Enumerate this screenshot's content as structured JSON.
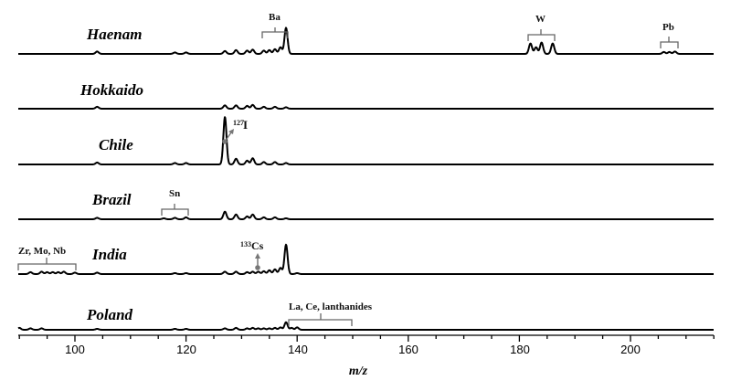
{
  "chart_data": {
    "type": "line",
    "title": "",
    "xlabel": "m/z",
    "ylabel": "",
    "xlim": [
      90,
      215
    ],
    "x_ticks": [
      100,
      120,
      140,
      160,
      180,
      200
    ],
    "x_tick_labels": [
      "100",
      "120",
      "140",
      "160",
      "180",
      "200"
    ],
    "minor_tick_step": 5,
    "grid": false,
    "legend": "none (samples labeled inline)",
    "layout": "stacked offset traces",
    "series": [
      {
        "name": "Haenam",
        "peaks": [
          {
            "mz": 104,
            "rel": 0.05
          },
          {
            "mz": 118,
            "rel": 0.03
          },
          {
            "mz": 120,
            "rel": 0.03
          },
          {
            "mz": 127,
            "rel": 0.06
          },
          {
            "mz": 129,
            "rel": 0.08
          },
          {
            "mz": 131,
            "rel": 0.07
          },
          {
            "mz": 132,
            "rel": 0.09
          },
          {
            "mz": 134,
            "rel": 0.07
          },
          {
            "mz": 135,
            "rel": 0.08
          },
          {
            "mz": 136,
            "rel": 0.1
          },
          {
            "mz": 137,
            "rel": 0.14
          },
          {
            "mz": 138,
            "rel": 0.55
          },
          {
            "mz": 182,
            "rel": 0.22
          },
          {
            "mz": 183,
            "rel": 0.14
          },
          {
            "mz": 184,
            "rel": 0.24
          },
          {
            "mz": 186,
            "rel": 0.22
          },
          {
            "mz": 206,
            "rel": 0.04
          },
          {
            "mz": 207,
            "rel": 0.04
          },
          {
            "mz": 208,
            "rel": 0.05
          }
        ]
      },
      {
        "name": "Hokkaido",
        "peaks": [
          {
            "mz": 104,
            "rel": 0.04
          },
          {
            "mz": 127,
            "rel": 0.07
          },
          {
            "mz": 129,
            "rel": 0.07
          },
          {
            "mz": 131,
            "rel": 0.06
          },
          {
            "mz": 132,
            "rel": 0.08
          },
          {
            "mz": 134,
            "rel": 0.04
          },
          {
            "mz": 136,
            "rel": 0.04
          },
          {
            "mz": 138,
            "rel": 0.03
          }
        ]
      },
      {
        "name": "Chile",
        "peaks": [
          {
            "mz": 104,
            "rel": 0.04
          },
          {
            "mz": 118,
            "rel": 0.03
          },
          {
            "mz": 120,
            "rel": 0.03
          },
          {
            "mz": 127,
            "rel": 1.0
          },
          {
            "mz": 129,
            "rel": 0.12
          },
          {
            "mz": 131,
            "rel": 0.08
          },
          {
            "mz": 132,
            "rel": 0.13
          },
          {
            "mz": 134,
            "rel": 0.05
          },
          {
            "mz": 136,
            "rel": 0.05
          },
          {
            "mz": 138,
            "rel": 0.03
          }
        ]
      },
      {
        "name": "Brazil",
        "peaks": [
          {
            "mz": 104,
            "rel": 0.03
          },
          {
            "mz": 116,
            "rel": 0.02
          },
          {
            "mz": 118,
            "rel": 0.03
          },
          {
            "mz": 120,
            "rel": 0.04
          },
          {
            "mz": 127,
            "rel": 0.16
          },
          {
            "mz": 129,
            "rel": 0.1
          },
          {
            "mz": 131,
            "rel": 0.06
          },
          {
            "mz": 132,
            "rel": 0.1
          },
          {
            "mz": 134,
            "rel": 0.04
          },
          {
            "mz": 136,
            "rel": 0.04
          },
          {
            "mz": 138,
            "rel": 0.02
          }
        ]
      },
      {
        "name": "India",
        "peaks": [
          {
            "mz": 92,
            "rel": 0.04
          },
          {
            "mz": 94,
            "rel": 0.05
          },
          {
            "mz": 95,
            "rel": 0.04
          },
          {
            "mz": 96,
            "rel": 0.04
          },
          {
            "mz": 97,
            "rel": 0.04
          },
          {
            "mz": 98,
            "rel": 0.05
          },
          {
            "mz": 100,
            "rel": 0.03
          },
          {
            "mz": 104,
            "rel": 0.03
          },
          {
            "mz": 118,
            "rel": 0.02
          },
          {
            "mz": 120,
            "rel": 0.02
          },
          {
            "mz": 127,
            "rel": 0.05
          },
          {
            "mz": 129,
            "rel": 0.05
          },
          {
            "mz": 131,
            "rel": 0.04
          },
          {
            "mz": 132,
            "rel": 0.05
          },
          {
            "mz": 133,
            "rel": 0.05
          },
          {
            "mz": 134,
            "rel": 0.06
          },
          {
            "mz": 135,
            "rel": 0.08
          },
          {
            "mz": 136,
            "rel": 0.1
          },
          {
            "mz": 137,
            "rel": 0.13
          },
          {
            "mz": 138,
            "rel": 0.62
          },
          {
            "mz": 140,
            "rel": 0.02
          }
        ]
      },
      {
        "name": "Poland",
        "peaks": [
          {
            "mz": 90,
            "rel": 0.04
          },
          {
            "mz": 92,
            "rel": 0.03
          },
          {
            "mz": 94,
            "rel": 0.03
          },
          {
            "mz": 104,
            "rel": 0.02
          },
          {
            "mz": 118,
            "rel": 0.02
          },
          {
            "mz": 120,
            "rel": 0.02
          },
          {
            "mz": 127,
            "rel": 0.03
          },
          {
            "mz": 129,
            "rel": 0.04
          },
          {
            "mz": 131,
            "rel": 0.03
          },
          {
            "mz": 132,
            "rel": 0.04
          },
          {
            "mz": 133,
            "rel": 0.03
          },
          {
            "mz": 134,
            "rel": 0.03
          },
          {
            "mz": 135,
            "rel": 0.03
          },
          {
            "mz": 136,
            "rel": 0.04
          },
          {
            "mz": 137,
            "rel": 0.05
          },
          {
            "mz": 138,
            "rel": 0.16
          },
          {
            "mz": 139,
            "rel": 0.04
          },
          {
            "mz": 140,
            "rel": 0.05
          }
        ]
      }
    ],
    "annotations": [
      {
        "text": "Ba",
        "series": "Haenam",
        "type": "bracket",
        "mz_range": [
          134,
          138
        ]
      },
      {
        "text": "W",
        "series": "Haenam",
        "type": "bracket",
        "mz_range": [
          182,
          186
        ]
      },
      {
        "text": "Pb",
        "series": "Haenam",
        "type": "bracket",
        "mz_range": [
          206,
          208
        ]
      },
      {
        "text": "127I",
        "series": "Chile",
        "type": "arrow",
        "mz": 127
      },
      {
        "text": "Sn",
        "series": "Brazil",
        "type": "bracket",
        "mz_range": [
          116,
          120
        ]
      },
      {
        "text": "Zr, Mo, Nb",
        "series": "India",
        "type": "bracket",
        "mz_range": [
          90,
          100
        ]
      },
      {
        "text": "133Cs",
        "series": "India",
        "type": "arrow",
        "mz": 133
      },
      {
        "text": "La, Ce, lanthanides",
        "series": "Poland",
        "type": "bracket",
        "mz_range": [
          139,
          150
        ]
      }
    ]
  },
  "labels": {
    "samples": [
      "Haenam",
      "Hokkaido",
      "Chile",
      "Brazil",
      "India",
      "Poland"
    ],
    "xlabel": "m/z",
    "ticks": [
      "100",
      "120",
      "140",
      "160",
      "180",
      "200"
    ],
    "annot": {
      "ba": "Ba",
      "w": "W",
      "pb": "Pb",
      "iodine_mass": "127",
      "iodine_sym": "I",
      "sn": "Sn",
      "zr": "Zr, Mo, Nb",
      "cs_mass": "133",
      "cs_sym": "Cs",
      "la": "La, Ce, lanthanides"
    }
  }
}
